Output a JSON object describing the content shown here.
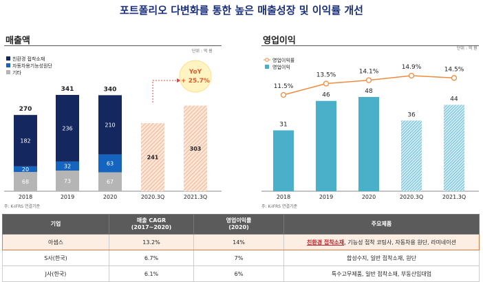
{
  "title": "포트폴리오 다변화를 통한 높은 매출성장 및 이익률 개선",
  "sales_chart": {
    "panel_title": "매출액",
    "unit": "단위 : 억 원",
    "legend": [
      "친환경 접착소재",
      "자동차용기능성원단",
      "기타"
    ],
    "note": "주: K-IFRS 연결기준",
    "yoy_label": "YoY\n+ 25.7%",
    "colors": {
      "eco": "#14275e",
      "auto": "#1565c0",
      "other": "#b5b5b5",
      "hatch": "#f0a882"
    }
  },
  "op_chart": {
    "panel_title": "영업이익",
    "unit": "단위 : 억 원",
    "legend": [
      "영업이익률",
      "영업이익"
    ],
    "note": "주: K-IFRS 연결기준",
    "colors": {
      "bar": "#4aafc9",
      "line": "#f08a3c"
    }
  },
  "chart_data": [
    {
      "type": "bar",
      "categories": [
        "2018",
        "2019",
        "2020",
        "2020.3Q",
        "2021.3Q"
      ],
      "series": [
        {
          "name": "친환경 접착소재",
          "values": [
            182,
            236,
            210,
            null,
            null
          ]
        },
        {
          "name": "자동차용기능성원단",
          "values": [
            20,
            32,
            63,
            null,
            null
          ]
        },
        {
          "name": "기타",
          "values": [
            68,
            73,
            67,
            null,
            null
          ]
        }
      ],
      "totals": [
        270,
        341,
        340,
        241,
        303
      ],
      "ylim": [
        0,
        400
      ]
    },
    {
      "type": "bar",
      "categories": [
        "2018",
        "2019",
        "2020",
        "2020.3Q",
        "2021.3Q"
      ],
      "series": [
        {
          "name": "영업이익",
          "values": [
            31,
            46,
            48,
            36,
            44
          ]
        },
        {
          "name": "영업이익률",
          "values": [
            11.5,
            13.5,
            14.1,
            14.9,
            14.5
          ],
          "labels": [
            "11.5%",
            "13.5%",
            "14.1%",
            "14.9%",
            "14.5%"
          ]
        }
      ],
      "ylim": [
        0,
        60
      ]
    }
  ],
  "table": {
    "headers": [
      "기업",
      "매출 CAGR\n(2017~2020)",
      "영업이익률\n(2020)",
      "주요제품"
    ],
    "rows": [
      {
        "company": "아셈스",
        "cagr": "13.2%",
        "margin": "14%",
        "products_hl": "친환경 접착소재",
        "products": ", 기능성 접착 코팅사, 자동차용 원단, 라미네이션",
        "highlight": true
      },
      {
        "company": "S사(한국)",
        "cagr": "6.7%",
        "margin": "7%",
        "products_hl": "",
        "products": "합성수지, 일반 접착소재, 원단",
        "highlight": false
      },
      {
        "company": "J사(한국)",
        "cagr": "6.1%",
        "margin": "6%",
        "products_hl": "",
        "products": "특수고무제품, 일반 접착소재, 부동산임대업",
        "highlight": false
      }
    ]
  }
}
